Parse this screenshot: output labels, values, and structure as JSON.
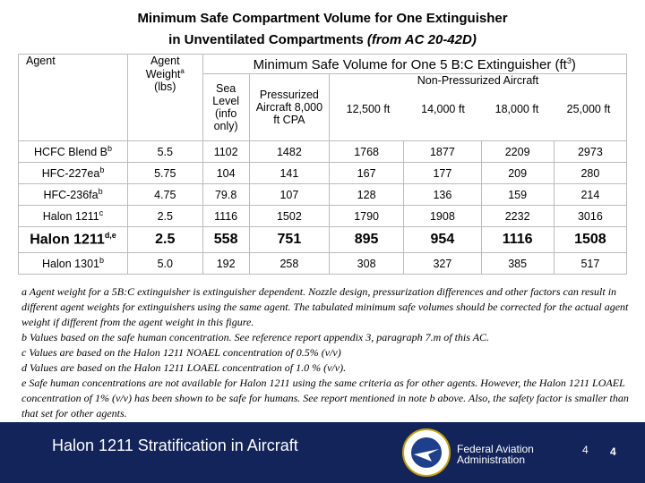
{
  "title": {
    "line1": "Minimum Safe Compartment Volume for One Extinguisher",
    "line2": "in Unventilated Compartments",
    "line2_italic": "(from AC 20-42D)"
  },
  "table": {
    "headers": {
      "agent": "Agent",
      "weight": "Agent Weight",
      "weight_sup": "a",
      "weight_unit": "(lbs)",
      "group": "Minimum Safe Volume for One 5 B:C Extinguisher (ft",
      "group_sup": "3",
      "group_end": ")",
      "sea": "Sea Level (info only)",
      "pressurized": "Pressurized Aircraft 8,000 ft CPA",
      "nonpressurized": "Non-Pressurized Aircraft",
      "altitudes": [
        "12,500 ft",
        "14,000 ft",
        "18,000 ft",
        "25,000 ft"
      ]
    },
    "rows": [
      {
        "agent": "HCFC Blend B",
        "sup": "b",
        "cells": [
          "5.5",
          "1102",
          "1482",
          "1768",
          "1877",
          "2209",
          "2973"
        ]
      },
      {
        "agent": "HFC-227ea",
        "sup": "b",
        "cells": [
          "5.75",
          "104",
          "141",
          "167",
          "177",
          "209",
          "280"
        ]
      },
      {
        "agent": "HFC-236fa",
        "sup": "b",
        "cells": [
          "4.75",
          "79.8",
          "107",
          "128",
          "136",
          "159",
          "214"
        ]
      },
      {
        "agent": "Halon 1211",
        "sup": "c",
        "cells": [
          "2.5",
          "1116",
          "1502",
          "1790",
          "1908",
          "2232",
          "3016"
        ]
      },
      {
        "agent": "Halon 1211",
        "sup": "d,e",
        "cells": [
          "2.5",
          "558",
          "751",
          "895",
          "954",
          "1116",
          "1508"
        ]
      },
      {
        "agent": "Halon 1301",
        "sup": "b",
        "cells": [
          "5.0",
          "192",
          "258",
          "308",
          "327",
          "385",
          "517"
        ]
      }
    ]
  },
  "footnotes": [
    "a  Agent weight for a 5B:C extinguisher is extinguisher dependent.  Nozzle design, pressurization differences and other factors can result in different agent weights for extinguishers using the same agent.  The tabulated minimum safe volumes should be corrected for the actual agent weight if different from the agent weight in this figure.",
    "b  Values based on the safe human concentration. See reference report appendix 3, paragraph 7.m of this AC.",
    "c  Values are based on the Halon 1211 NOAEL concentration of 0.5% (v/v)",
    "d Values are based on the Halon 1211 LOAEL concentration of 1.0 % (v/v).",
    "e Safe human concentrations are not available for Halon 1211 using the same criteria as for other agents. However, the Halon 1211 LOAEL concentration of 1% (v/v) has been shown to be safe for humans.  See report mentioned in note b above.  Also, the safety factor is smaller than that set for other agents."
  ],
  "footer": {
    "title": "Halon 1211 Stratification in Aircraft",
    "agency_line1": "Federal Aviation",
    "agency_line2": "Administration",
    "page_left": "4",
    "page_right": "4"
  }
}
